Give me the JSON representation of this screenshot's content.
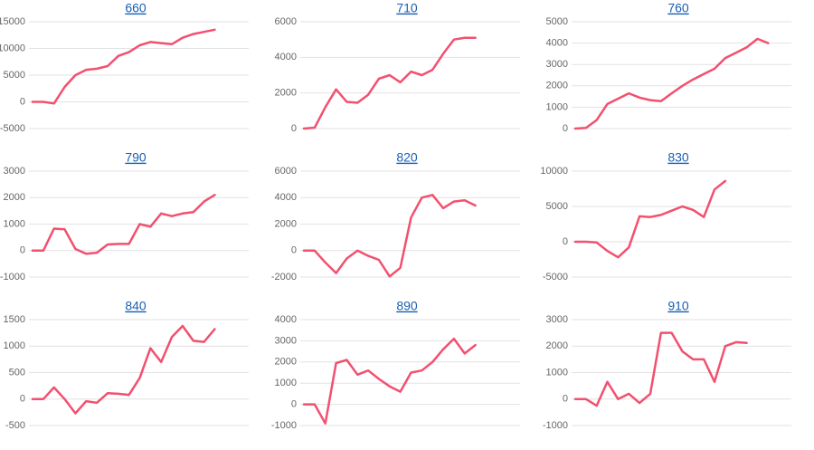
{
  "chart_data": [
    {
      "type": "line",
      "title": "660",
      "color": "#f2506e",
      "grid": true,
      "ylim": [
        -5000,
        15000
      ],
      "yticks": [
        -5000,
        0,
        5000,
        10000,
        15000
      ],
      "values": [
        0,
        0,
        -300,
        2800,
        5000,
        6000,
        6200,
        6700,
        8600,
        9300,
        10600,
        11200,
        11000,
        10800,
        12000,
        12700,
        13100,
        13500
      ]
    },
    {
      "type": "line",
      "title": "710",
      "color": "#f2506e",
      "grid": true,
      "ylim": [
        0,
        6000
      ],
      "yticks": [
        0,
        2000,
        4000,
        6000
      ],
      "values": [
        0,
        50,
        1200,
        2200,
        1500,
        1450,
        1900,
        2800,
        3000,
        2600,
        3200,
        3000,
        3300,
        4200,
        5000,
        5100,
        5100
      ]
    },
    {
      "type": "line",
      "title": "760",
      "color": "#f2506e",
      "grid": true,
      "ylim": [
        0,
        5000
      ],
      "yticks": [
        0,
        1000,
        2000,
        3000,
        4000,
        5000
      ],
      "values": [
        0,
        30,
        400,
        1150,
        1400,
        1650,
        1450,
        1330,
        1280,
        1650,
        2000,
        2300,
        2550,
        2800,
        3300,
        3550,
        3800,
        4200,
        4000
      ]
    },
    {
      "type": "line",
      "title": "790",
      "color": "#f2506e",
      "grid": true,
      "ylim": [
        -1000,
        3000
      ],
      "yticks": [
        -1000,
        0,
        1000,
        2000,
        3000
      ],
      "values": [
        0,
        0,
        830,
        800,
        60,
        -120,
        -80,
        230,
        250,
        250,
        1000,
        900,
        1400,
        1300,
        1400,
        1450,
        1850,
        2100
      ]
    },
    {
      "type": "line",
      "title": "820",
      "color": "#f2506e",
      "grid": true,
      "ylim": [
        -2000,
        6000
      ],
      "yticks": [
        -2000,
        0,
        2000,
        4000,
        6000
      ],
      "values": [
        0,
        0,
        -900,
        -1700,
        -600,
        0,
        -400,
        -700,
        -1950,
        -1300,
        2500,
        4000,
        4200,
        3200,
        3700,
        3800,
        3400
      ]
    },
    {
      "type": "line",
      "title": "830",
      "color": "#f2506e",
      "grid": true,
      "ylim": [
        -5000,
        10000
      ],
      "yticks": [
        -5000,
        0,
        5000,
        10000
      ],
      "values": [
        0,
        0,
        -100,
        -1300,
        -2200,
        -800,
        3600,
        3500,
        3800,
        4400,
        5000,
        4500,
        3500,
        7400,
        8600
      ]
    },
    {
      "type": "line",
      "title": "840",
      "color": "#f2506e",
      "grid": true,
      "ylim": [
        -500,
        1500
      ],
      "yticks": [
        -500,
        0,
        500,
        1000,
        1500
      ],
      "values": [
        0,
        0,
        220,
        0,
        -270,
        -40,
        -70,
        110,
        100,
        80,
        400,
        960,
        700,
        1170,
        1380,
        1100,
        1080,
        1320
      ]
    },
    {
      "type": "line",
      "title": "890",
      "color": "#f2506e",
      "grid": true,
      "ylim": [
        -1000,
        4000
      ],
      "yticks": [
        -1000,
        0,
        1000,
        2000,
        3000,
        4000
      ],
      "values": [
        0,
        0,
        -900,
        1950,
        2100,
        1400,
        1600,
        1200,
        850,
        600,
        1500,
        1600,
        2000,
        2600,
        3100,
        2400,
        2800
      ]
    },
    {
      "type": "line",
      "title": "910",
      "color": "#f2506e",
      "grid": true,
      "ylim": [
        -1000,
        3000
      ],
      "yticks": [
        -1000,
        0,
        1000,
        2000,
        3000
      ],
      "values": [
        0,
        0,
        -250,
        650,
        0,
        200,
        -150,
        200,
        2500,
        2500,
        1800,
        1500,
        1500,
        650,
        2000,
        2150,
        2120
      ]
    }
  ]
}
